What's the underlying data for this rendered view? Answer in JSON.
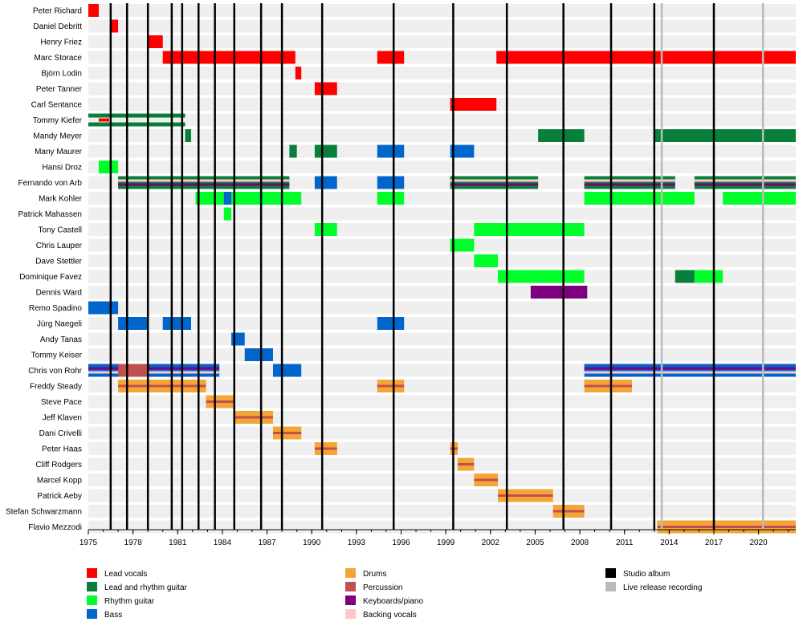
{
  "chart_data": {
    "type": "timeline",
    "title": "",
    "x_axis": {
      "start": 1975,
      "end": 2022.5,
      "ticks": [
        1975,
        1978,
        1981,
        1984,
        1987,
        1990,
        1993,
        1996,
        1999,
        2002,
        2005,
        2008,
        2011,
        2014,
        2017,
        2020
      ]
    },
    "roles": {
      "lead_vocals": {
        "label": "Lead vocals",
        "color": "#ff0000"
      },
      "lead_rhythm_guitar": {
        "label": "Lead and rhythm guitar",
        "color": "#087f3a"
      },
      "rhythm_guitar": {
        "label": "Rhythm guitar",
        "color": "#00ff2a"
      },
      "bass": {
        "label": "Bass",
        "color": "#0066cc"
      },
      "drums": {
        "label": "Drums",
        "color": "#f5a536"
      },
      "percussion": {
        "label": "Percussion",
        "color": "#c0504d"
      },
      "keyboards": {
        "label": "Keyboards/piano",
        "color": "#7f007f"
      },
      "backing_vocals": {
        "label": "Backing vocals",
        "color": "#ffc8c8"
      },
      "studio_album": {
        "label": "Studio album",
        "color": "#000000"
      },
      "live_recording": {
        "label": "Live release recording",
        "color": "#bbbbbb"
      }
    },
    "legend": [
      [
        "lead_vocals",
        "lead_rhythm_guitar",
        "rhythm_guitar",
        "bass"
      ],
      [
        "drums",
        "percussion",
        "keyboards",
        "backing_vocals"
      ],
      [
        "studio_album",
        "live_recording"
      ]
    ],
    "studio_albums": [
      1976.5,
      1977.6,
      1979.0,
      1980.6,
      1981.3,
      1982.4,
      1983.5,
      1984.8,
      1986.6,
      1988.0,
      1990.7,
      1995.5,
      1999.5,
      2003.1,
      2006.9,
      2010.1,
      2013.0,
      2017.0
    ],
    "live_recordings": [
      2013.5,
      2020.3
    ],
    "members": [
      {
        "name": "Peter Richard",
        "spans": [
          {
            "s": 1975.0,
            "e": 1975.7,
            "role": "lead_vocals"
          }
        ]
      },
      {
        "name": "Daniel Debritt",
        "spans": [
          {
            "s": 1976.5,
            "e": 1977.0,
            "role": "lead_vocals"
          }
        ]
      },
      {
        "name": "Henry Friez",
        "spans": [
          {
            "s": 1979.0,
            "e": 1980.0,
            "role": "lead_vocals"
          }
        ]
      },
      {
        "name": "Marc Storace",
        "spans": [
          {
            "s": 1980.0,
            "e": 1988.9,
            "role": "lead_vocals"
          },
          {
            "s": 1994.4,
            "e": 1996.2,
            "role": "lead_vocals"
          },
          {
            "s": 2002.4,
            "e": 2022.5,
            "role": "lead_vocals"
          }
        ]
      },
      {
        "name": "Björn Lodin",
        "spans": [
          {
            "s": 1988.9,
            "e": 1989.3,
            "role": "lead_vocals"
          }
        ]
      },
      {
        "name": "Peter Tanner",
        "spans": [
          {
            "s": 1990.2,
            "e": 1991.7,
            "role": "lead_vocals"
          }
        ]
      },
      {
        "name": "Carl Sentance",
        "spans": [
          {
            "s": 1999.3,
            "e": 2002.4,
            "role": "lead_vocals"
          }
        ]
      },
      {
        "name": "Tommy Kiefer",
        "spans": [
          {
            "s": 1975.0,
            "e": 1981.5,
            "role": "lead_rhythm_guitar"
          },
          {
            "s": 1975.7,
            "e": 1976.4,
            "role": "lead_vocals",
            "thin": true
          }
        ]
      },
      {
        "name": "Mandy Meyer",
        "spans": [
          {
            "s": 1981.5,
            "e": 1981.9,
            "role": "lead_rhythm_guitar"
          },
          {
            "s": 2005.2,
            "e": 2008.3,
            "role": "lead_rhythm_guitar"
          },
          {
            "s": 2013.0,
            "e": 2022.5,
            "role": "lead_rhythm_guitar"
          }
        ]
      },
      {
        "name": "Many Maurer",
        "spans": [
          {
            "s": 1988.5,
            "e": 1989.0,
            "role": "lead_rhythm_guitar"
          },
          {
            "s": 1990.2,
            "e": 1991.7,
            "role": "lead_rhythm_guitar"
          },
          {
            "s": 1994.4,
            "e": 1996.2,
            "role": "bass"
          },
          {
            "s": 1999.3,
            "e": 2000.9,
            "role": "bass"
          }
        ]
      },
      {
        "name": "Hansi Droz",
        "spans": [
          {
            "s": 1975.7,
            "e": 1977.0,
            "role": "rhythm_guitar"
          }
        ]
      },
      {
        "name": "Fernando von Arb",
        "spans": [
          {
            "s": 1977.0,
            "e": 1988.5,
            "role": "lead_rhythm_guitar"
          },
          {
            "s": 1990.2,
            "e": 1991.7,
            "role": "bass"
          },
          {
            "s": 1994.4,
            "e": 1996.2,
            "role": "bass"
          },
          {
            "s": 1999.3,
            "e": 2005.2,
            "role": "lead_rhythm_guitar"
          },
          {
            "s": 2008.3,
            "e": 2014.4,
            "role": "lead_rhythm_guitar"
          },
          {
            "s": 2015.7,
            "e": 2022.5,
            "role": "lead_rhythm_guitar"
          }
        ]
      },
      {
        "name": "Mark Kohler",
        "spans": [
          {
            "s": 1982.2,
            "e": 1989.3,
            "role": "rhythm_guitar"
          },
          {
            "s": 1984.1,
            "e": 1984.6,
            "role": "bass"
          },
          {
            "s": 1994.4,
            "e": 1996.2,
            "role": "rhythm_guitar"
          },
          {
            "s": 2008.3,
            "e": 2015.7,
            "role": "rhythm_guitar"
          },
          {
            "s": 2017.6,
            "e": 2022.5,
            "role": "rhythm_guitar"
          }
        ]
      },
      {
        "name": "Patrick Mahassen",
        "spans": [
          {
            "s": 1984.1,
            "e": 1984.6,
            "role": "rhythm_guitar"
          }
        ]
      },
      {
        "name": "Tony Castell",
        "spans": [
          {
            "s": 1990.2,
            "e": 1991.7,
            "role": "rhythm_guitar"
          },
          {
            "s": 2000.9,
            "e": 2008.3,
            "role": "rhythm_guitar"
          }
        ]
      },
      {
        "name": "Chris Lauper",
        "spans": [
          {
            "s": 1999.3,
            "e": 2000.9,
            "role": "rhythm_guitar"
          }
        ]
      },
      {
        "name": "Dave Stettler",
        "spans": [
          {
            "s": 2000.9,
            "e": 2002.5,
            "role": "rhythm_guitar"
          }
        ]
      },
      {
        "name": "Dominique Favez",
        "spans": [
          {
            "s": 2002.5,
            "e": 2008.3,
            "role": "rhythm_guitar"
          },
          {
            "s": 2014.4,
            "e": 2015.7,
            "role": "lead_rhythm_guitar"
          },
          {
            "s": 2015.7,
            "e": 2017.6,
            "role": "rhythm_guitar"
          }
        ]
      },
      {
        "name": "Dennis Ward",
        "spans": [
          {
            "s": 2004.7,
            "e": 2008.5,
            "role": "keyboards"
          }
        ]
      },
      {
        "name": "Remo Spadino",
        "spans": [
          {
            "s": 1975.0,
            "e": 1977.0,
            "role": "bass"
          }
        ]
      },
      {
        "name": "Jürg Naegeli",
        "spans": [
          {
            "s": 1977.0,
            "e": 1979.0,
            "role": "bass"
          },
          {
            "s": 1980.0,
            "e": 1981.9,
            "role": "bass"
          },
          {
            "s": 1994.4,
            "e": 1996.2,
            "role": "bass"
          }
        ]
      },
      {
        "name": "Andy Tanas",
        "spans": [
          {
            "s": 1984.6,
            "e": 1985.5,
            "role": "bass"
          }
        ]
      },
      {
        "name": "Tommy Keiser",
        "spans": [
          {
            "s": 1985.5,
            "e": 1987.4,
            "role": "bass"
          }
        ]
      },
      {
        "name": "Chris von Rohr",
        "spans": [
          {
            "s": 1975.0,
            "e": 1983.8,
            "role": "bass"
          },
          {
            "s": 1977.0,
            "e": 1979.0,
            "role": "percussion"
          },
          {
            "s": 1987.4,
            "e": 1989.3,
            "role": "bass"
          },
          {
            "s": 2008.3,
            "e": 2022.5,
            "role": "bass"
          }
        ]
      },
      {
        "name": "Freddy Steady",
        "spans": [
          {
            "s": 1977.0,
            "e": 1982.9,
            "role": "drums"
          },
          {
            "s": 1994.4,
            "e": 1996.2,
            "role": "drums"
          },
          {
            "s": 2008.3,
            "e": 2011.5,
            "role": "drums"
          }
        ]
      },
      {
        "name": "Steve Pace",
        "spans": [
          {
            "s": 1982.9,
            "e": 1984.8,
            "role": "drums"
          }
        ]
      },
      {
        "name": "Jeff Klaven",
        "spans": [
          {
            "s": 1984.8,
            "e": 1987.4,
            "role": "drums"
          }
        ]
      },
      {
        "name": "Dani Crivelli",
        "spans": [
          {
            "s": 1987.4,
            "e": 1989.3,
            "role": "drums"
          }
        ]
      },
      {
        "name": "Peter Haas",
        "spans": [
          {
            "s": 1990.2,
            "e": 1991.7,
            "role": "drums"
          },
          {
            "s": 1999.3,
            "e": 1999.8,
            "role": "drums"
          }
        ]
      },
      {
        "name": "Cliff Rodgers",
        "spans": [
          {
            "s": 1999.8,
            "e": 2000.9,
            "role": "drums"
          }
        ]
      },
      {
        "name": "Marcel Kopp",
        "spans": [
          {
            "s": 2000.9,
            "e": 2002.5,
            "role": "drums"
          }
        ]
      },
      {
        "name": "Patrick Aeby",
        "spans": [
          {
            "s": 2002.5,
            "e": 2006.2,
            "role": "drums"
          }
        ]
      },
      {
        "name": "Stefan Schwarzmann",
        "spans": [
          {
            "s": 2006.2,
            "e": 2008.3,
            "role": "drums"
          }
        ]
      },
      {
        "name": "Flavio Mezzodi",
        "spans": [
          {
            "s": 2013.2,
            "e": 2022.5,
            "role": "drums"
          }
        ]
      }
    ]
  }
}
